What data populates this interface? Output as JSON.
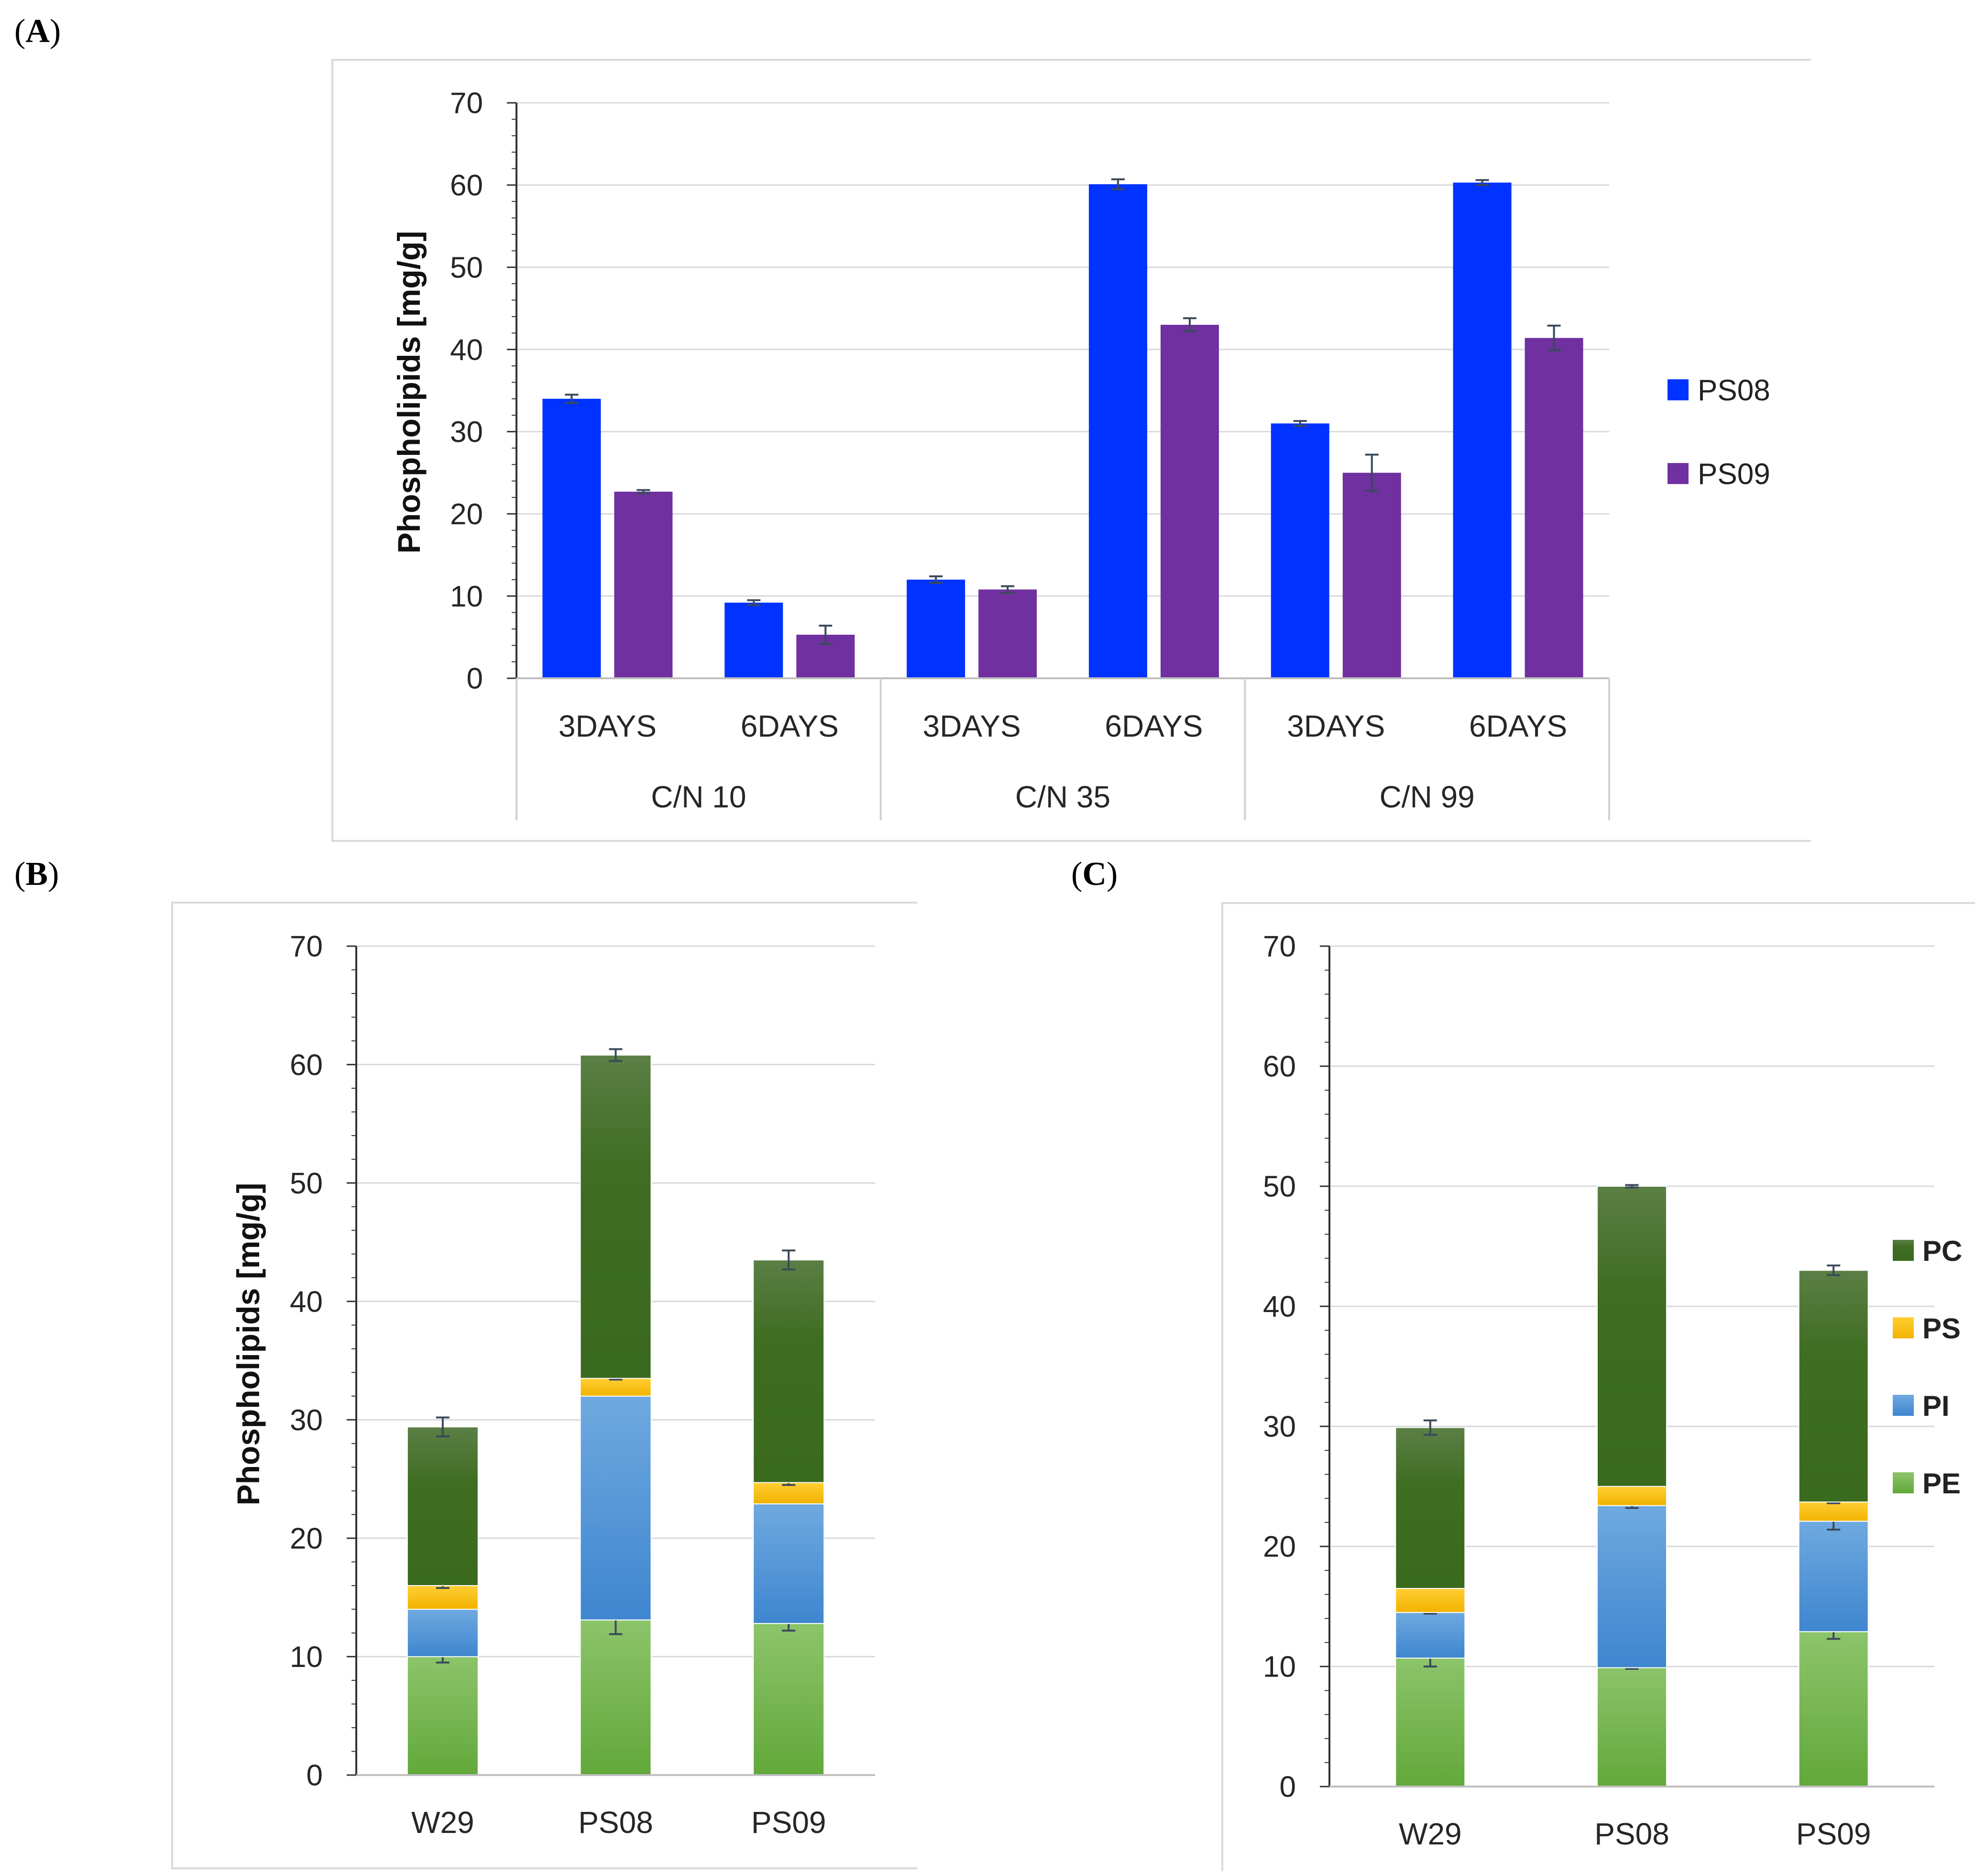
{
  "panels": {
    "A": {
      "label_open": "(",
      "label_letter": "A",
      "label_close": ")"
    },
    "B": {
      "label_open": "(",
      "label_letter": "B",
      "label_close": ")"
    },
    "C": {
      "label_open": "(",
      "label_letter": "C",
      "label_close": ")"
    }
  },
  "colors": {
    "PS08": "#0033ff",
    "PS09": "#7030a0",
    "PE": "#6faf46",
    "PI": "#4a8fd6",
    "PS": "#ffc000",
    "PC": "#3f6f24",
    "error_bar": "#3a4a5a",
    "grid": "#d9d9d9",
    "axis": "#333333"
  },
  "chart_data": [
    {
      "id": "A",
      "type": "bar",
      "ylabel": "Phospholipids [mg/g]",
      "ylim": [
        0,
        70
      ],
      "yticks": [
        0,
        10,
        20,
        30,
        40,
        50,
        60,
        70
      ],
      "groups": [
        "C/N 10",
        "C/N 35",
        "C/N 99"
      ],
      "categories": [
        "3DAYS",
        "6DAYS",
        "3DAYS",
        "6DAYS",
        "3DAYS",
        "6DAYS"
      ],
      "series": [
        {
          "name": "PS08",
          "values": [
            34.0,
            9.2,
            12.0,
            60.1,
            31.0,
            60.3
          ],
          "errors": [
            0.5,
            0.3,
            0.4,
            0.6,
            0.3,
            0.3
          ]
        },
        {
          "name": "PS09",
          "values": [
            22.7,
            5.3,
            10.8,
            43.0,
            25.0,
            41.4
          ],
          "errors": [
            0.2,
            1.1,
            0.4,
            0.8,
            2.2,
            1.5
          ]
        }
      ],
      "legend": [
        "PS08",
        "PS09"
      ],
      "legend_position": "right"
    },
    {
      "id": "B",
      "type": "bar",
      "stacked": true,
      "ylabel": "Phospholipids [mg/g]",
      "ylim": [
        0,
        70
      ],
      "yticks": [
        0,
        10,
        20,
        30,
        40,
        50,
        60,
        70
      ],
      "categories": [
        "W29",
        "PS08",
        "PS09"
      ],
      "series": [
        {
          "name": "PE",
          "values": [
            10.0,
            13.1,
            12.8
          ],
          "errors": [
            0.5,
            1.2,
            0.6
          ]
        },
        {
          "name": "PI",
          "values": [
            4.0,
            18.9,
            10.1
          ],
          "errors": [
            0,
            0,
            0
          ]
        },
        {
          "name": "PS",
          "values": [
            2.0,
            1.5,
            1.8
          ],
          "errors": [
            0.2,
            0.1,
            0.2
          ]
        },
        {
          "name": "PC",
          "values": [
            13.4,
            27.3,
            18.8
          ],
          "errors": [
            0.8,
            0.5,
            0.8
          ]
        }
      ]
    },
    {
      "id": "C",
      "type": "bar",
      "stacked": true,
      "ylabel": "",
      "ylim": [
        0,
        70
      ],
      "yticks": [
        0,
        10,
        20,
        30,
        40,
        50,
        60,
        70
      ],
      "categories": [
        "W29",
        "PS08",
        "PS09"
      ],
      "series": [
        {
          "name": "PE",
          "values": [
            10.7,
            9.9,
            12.9
          ],
          "errors": [
            0.7,
            0.1,
            0.6
          ]
        },
        {
          "name": "PI",
          "values": [
            3.8,
            13.5,
            9.2
          ],
          "errors": [
            0.1,
            0.2,
            0.7
          ]
        },
        {
          "name": "PS",
          "values": [
            2.0,
            1.6,
            1.6
          ],
          "errors": [
            0,
            0,
            0.1
          ]
        },
        {
          "name": "PC",
          "values": [
            13.4,
            25.0,
            19.3
          ],
          "errors": [
            0.6,
            0.1,
            0.4
          ]
        }
      ],
      "legend": [
        "PC",
        "PS",
        "PI",
        "PE"
      ],
      "legend_position": "right"
    }
  ]
}
